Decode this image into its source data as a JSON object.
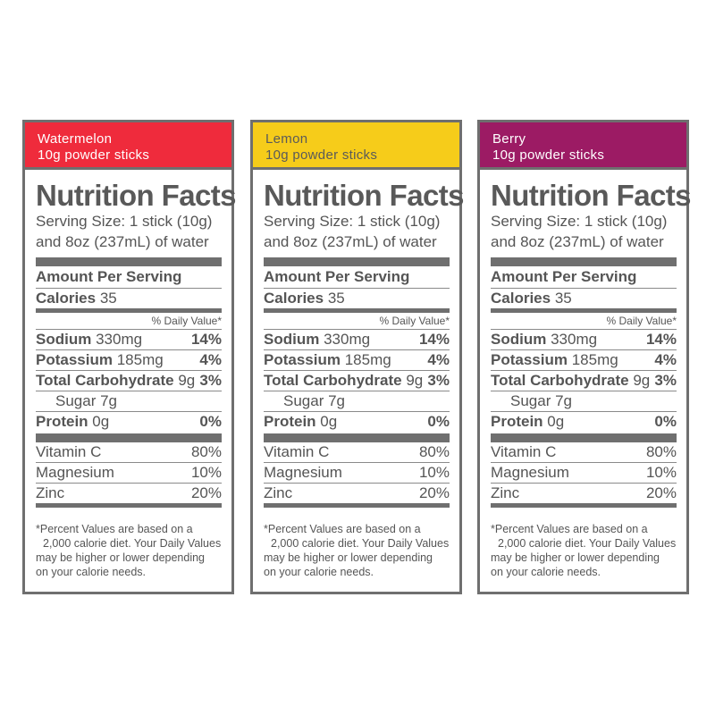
{
  "panels": [
    {
      "flavor": "Watermelon",
      "subtitle": "10g powder sticks",
      "header_color": "#ef2b3c",
      "title": "Nutrition Facts",
      "serving_line1": "Serving Size: 1 stick (10g)",
      "serving_line2": "and 8oz (237mL) of water",
      "amount_per_serving": "Amount Per Serving",
      "calories_label": "Calories",
      "calories_value": "35",
      "daily_value_label": "% Daily Value*",
      "sodium_label": "Sodium",
      "sodium_amount": "330mg",
      "sodium_pct": "14%",
      "potassium_label": "Potassium",
      "potassium_amount": "185mg",
      "potassium_pct": "4%",
      "carb_label": "Total Carbohydrate",
      "carb_amount": "9g",
      "carb_pct": "3%",
      "sugar": "Sugar 7g",
      "protein_label": "Protein",
      "protein_amount": "0g",
      "protein_pct": "0%",
      "vitc_label": "Vitamin C",
      "vitc_pct": "80%",
      "magnesium_label": "Magnesium",
      "magnesium_pct": "10%",
      "zinc_label": "Zinc",
      "zinc_pct": "20%",
      "footnote_1": "*Percent Values are based on a",
      "footnote_2": "2,000 calorie diet. Your Daily Values",
      "footnote_3": "may be higher or lower depending",
      "footnote_4": "on your calorie needs."
    },
    {
      "flavor": "Lemon",
      "subtitle": "10g powder sticks",
      "header_color": "#f6cc1a",
      "title": "Nutrition Facts",
      "serving_line1": "Serving Size: 1 stick (10g)",
      "serving_line2": "and 8oz (237mL) of water",
      "amount_per_serving": "Amount Per Serving",
      "calories_label": "Calories",
      "calories_value": "35",
      "daily_value_label": "% Daily Value*",
      "sodium_label": "Sodium",
      "sodium_amount": "330mg",
      "sodium_pct": "14%",
      "potassium_label": "Potassium",
      "potassium_amount": "185mg",
      "potassium_pct": "4%",
      "carb_label": "Total Carbohydrate",
      "carb_amount": "9g",
      "carb_pct": "3%",
      "sugar": "Sugar 7g",
      "protein_label": "Protein",
      "protein_amount": "0g",
      "protein_pct": "0%",
      "vitc_label": "Vitamin C",
      "vitc_pct": "80%",
      "magnesium_label": "Magnesium",
      "magnesium_pct": "10%",
      "zinc_label": "Zinc",
      "zinc_pct": "20%",
      "footnote_1": "*Percent Values are based on a",
      "footnote_2": "2,000 calorie diet. Your Daily Values",
      "footnote_3": "may be higher or lower depending",
      "footnote_4": "on your calorie needs."
    },
    {
      "flavor": "Berry",
      "subtitle": "10g powder sticks",
      "header_color": "#9c1b64",
      "title": "Nutrition Facts",
      "serving_line1": "Serving Size: 1 stick (10g)",
      "serving_line2": "and 8oz (237mL) of water",
      "amount_per_serving": "Amount Per Serving",
      "calories_label": "Calories",
      "calories_value": "35",
      "daily_value_label": "% Daily Value*",
      "sodium_label": "Sodium",
      "sodium_amount": "330mg",
      "sodium_pct": "14%",
      "potassium_label": "Potassium",
      "potassium_amount": "185mg",
      "potassium_pct": "4%",
      "carb_label": "Total Carbohydrate",
      "carb_amount": "9g",
      "carb_pct": "3%",
      "sugar": "Sugar 7g",
      "protein_label": "Protein",
      "protein_amount": "0g",
      "protein_pct": "0%",
      "vitc_label": "Vitamin C",
      "vitc_pct": "80%",
      "magnesium_label": "Magnesium",
      "magnesium_pct": "10%",
      "zinc_label": "Zinc",
      "zinc_pct": "20%",
      "footnote_1": "*Percent Values are based on a",
      "footnote_2": "2,000 calorie diet. Your Daily Values",
      "footnote_3": "may be higher or lower depending",
      "footnote_4": "on your calorie needs."
    }
  ]
}
